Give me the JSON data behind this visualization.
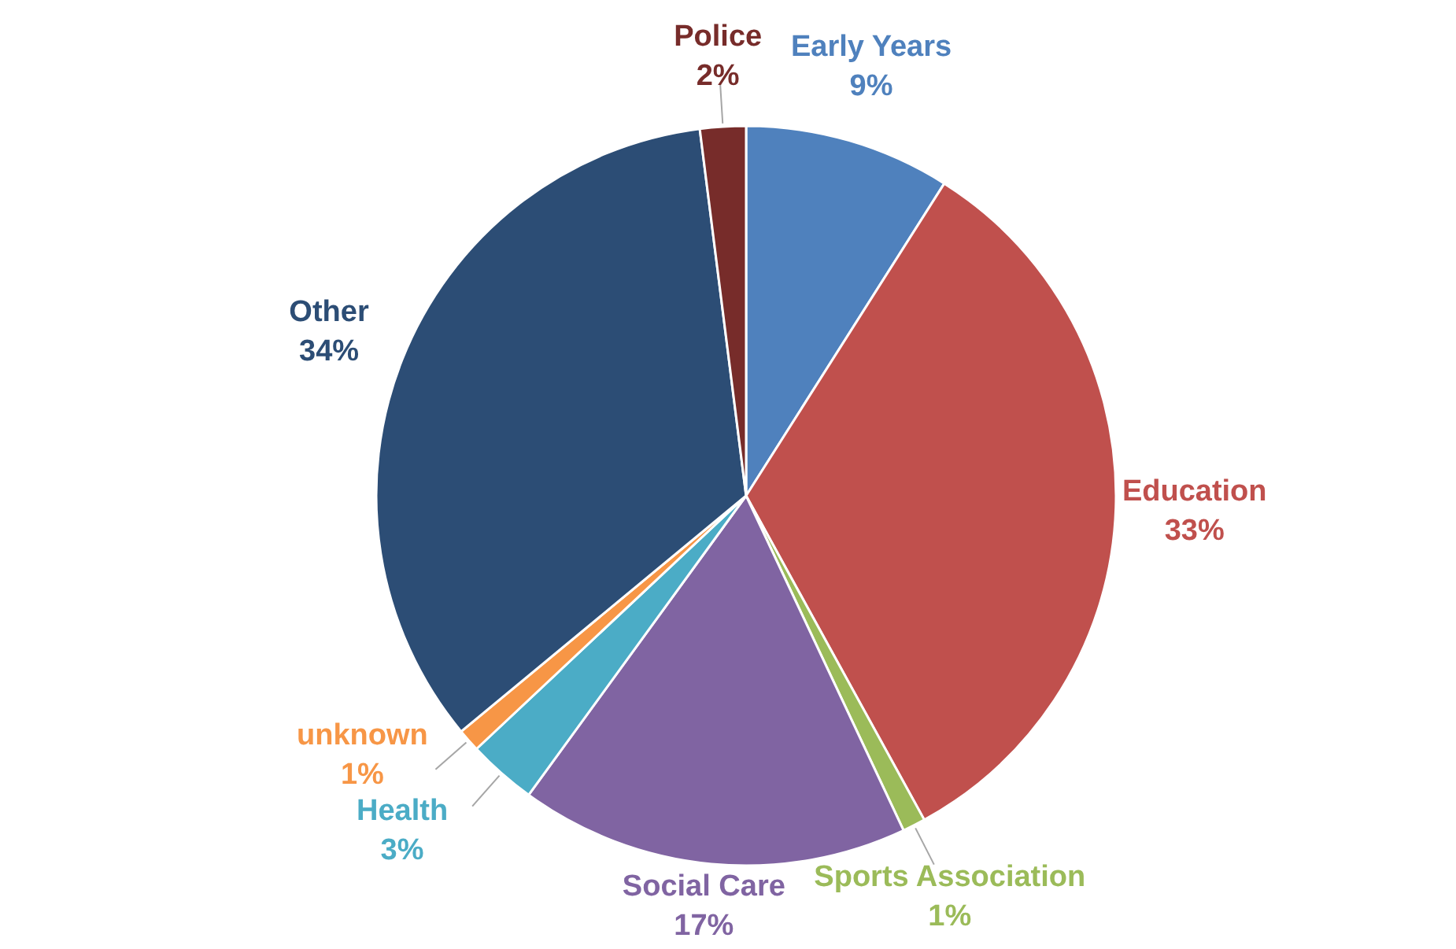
{
  "chart_data": {
    "type": "pie",
    "categories": [
      "Early Years",
      "Education",
      "Sports Association",
      "Social Care",
      "Health",
      "unknown",
      "Other",
      "Police"
    ],
    "values": [
      9,
      33,
      1,
      17,
      3,
      1,
      34,
      2
    ],
    "value_labels": [
      "9%",
      "33%",
      "1%",
      "17%",
      "3%",
      "1%",
      "34%",
      "2%"
    ],
    "colors": [
      "#4f81bd",
      "#c0504d",
      "#9bbb59",
      "#8064a2",
      "#4bacc6",
      "#f79646",
      "#2c4d75",
      "#772c2a"
    ]
  }
}
